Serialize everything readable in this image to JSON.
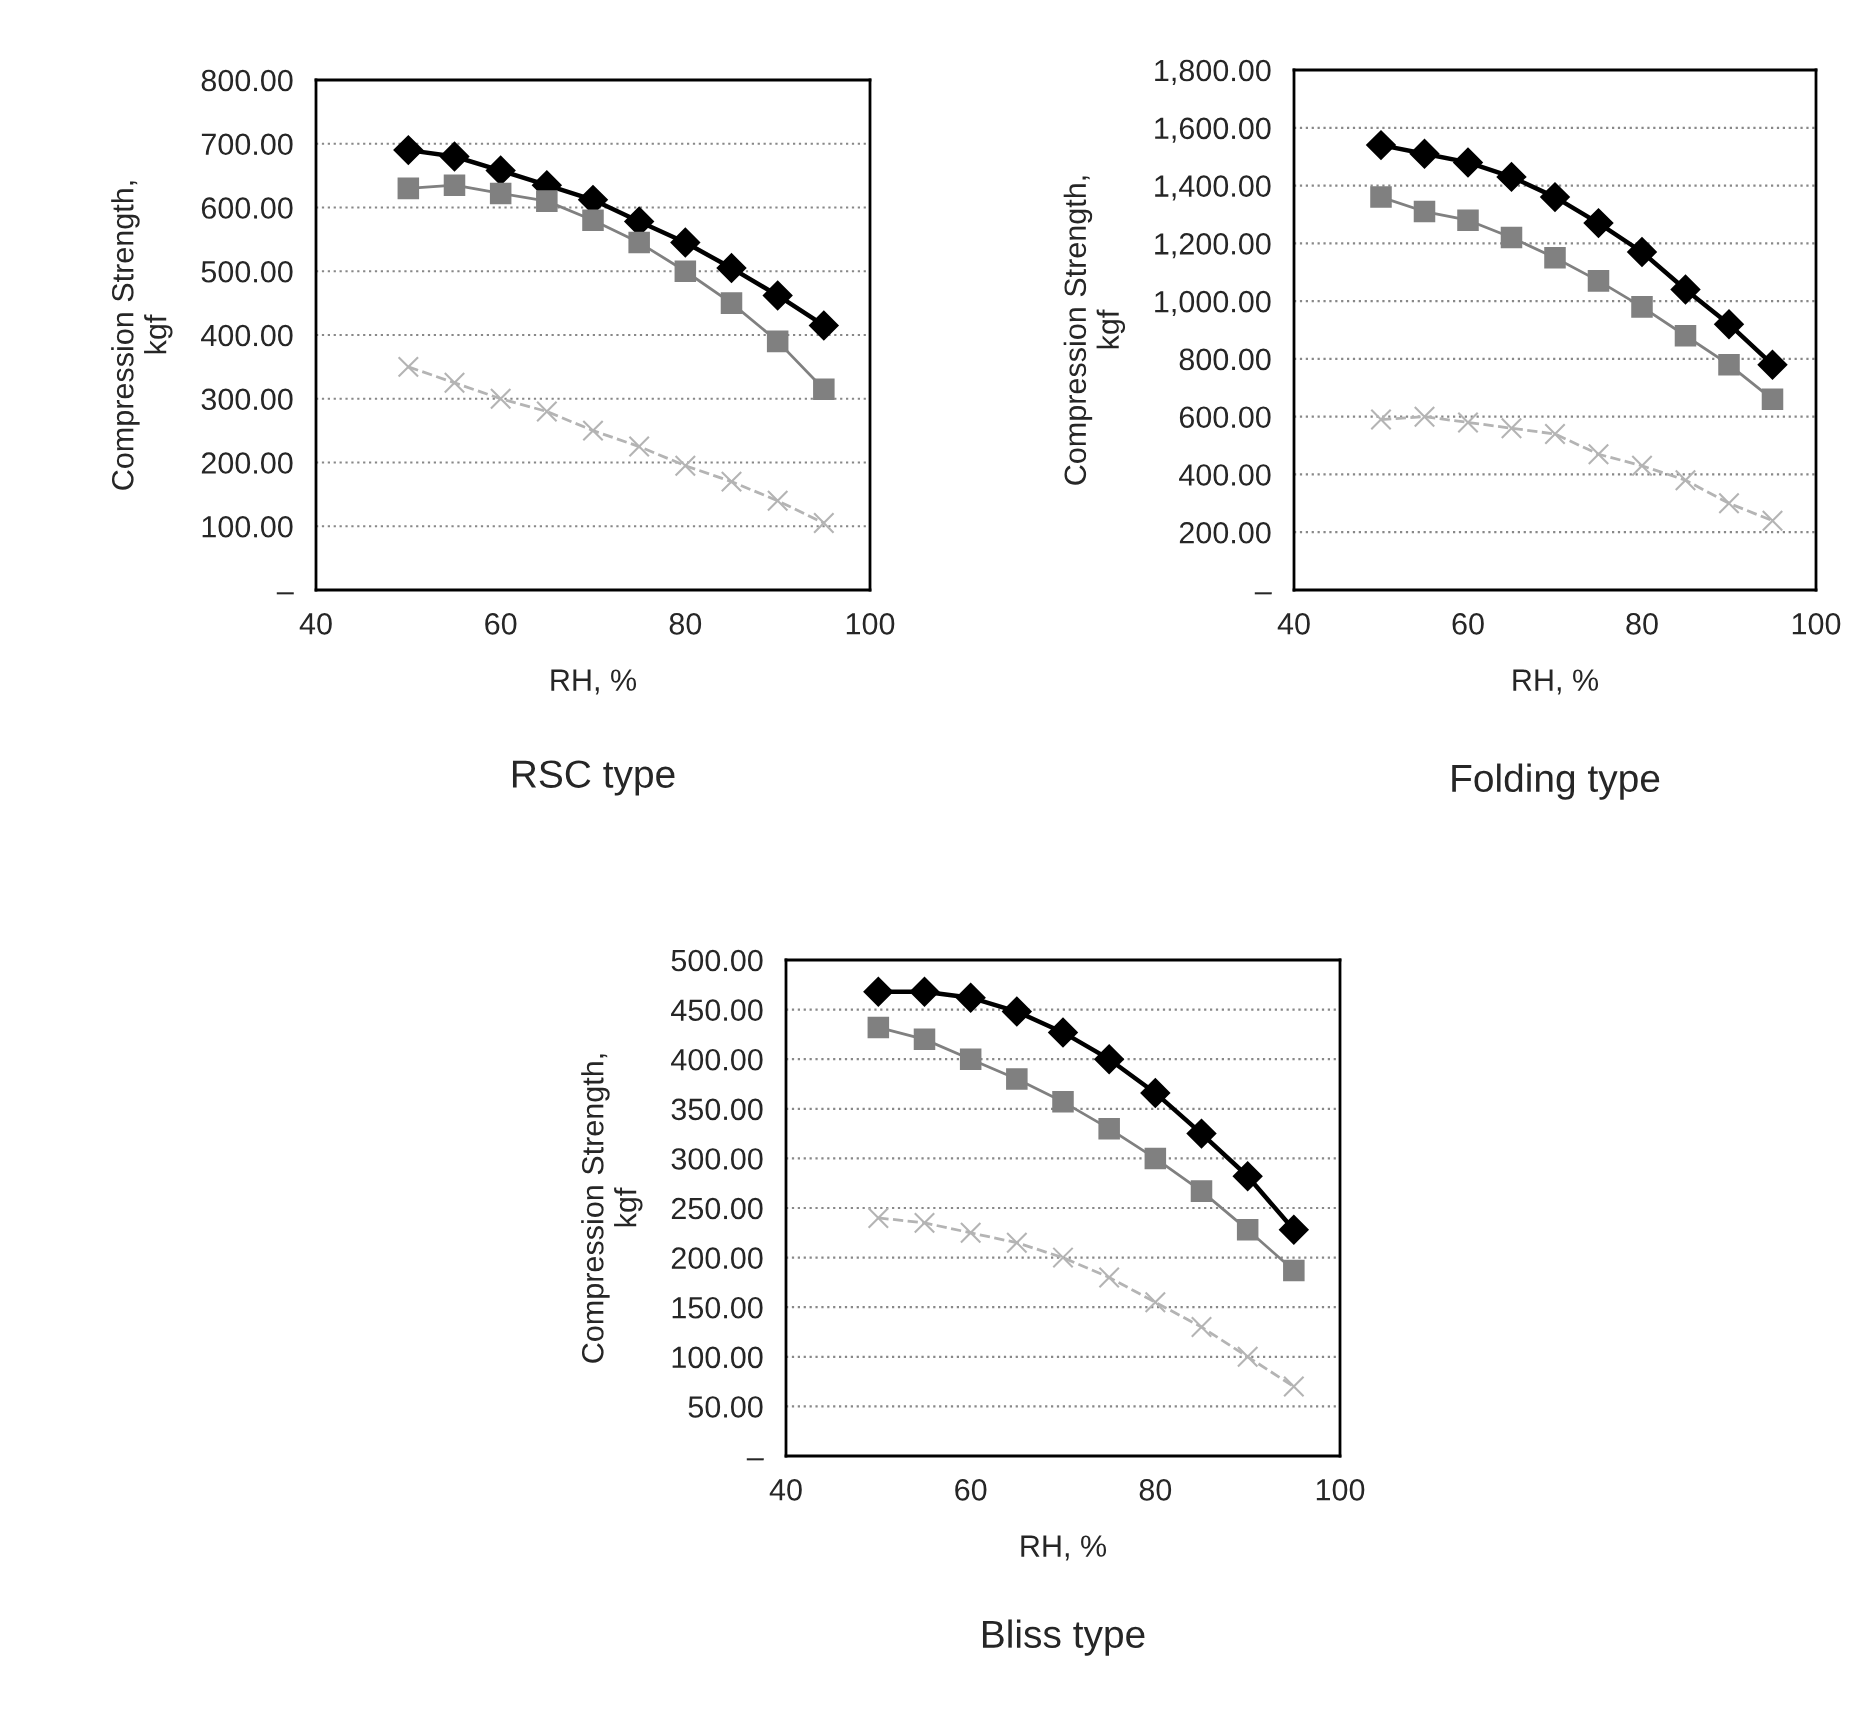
{
  "chart_data": [
    {
      "type": "line",
      "title": "RSC type",
      "xlabel": "RH, %",
      "ylabel": "Compression Strength,\nkgf",
      "x": [
        50,
        55,
        60,
        65,
        70,
        75,
        80,
        85,
        90,
        95
      ],
      "xlim": [
        40,
        100
      ],
      "xticks": [
        40,
        60,
        80,
        100
      ],
      "ylim": [
        0,
        800
      ],
      "yticks": [
        {
          "value": 0,
          "label": "–"
        },
        {
          "value": 100,
          "label": "100.00"
        },
        {
          "value": 200,
          "label": "200.00"
        },
        {
          "value": 300,
          "label": "300.00"
        },
        {
          "value": 400,
          "label": "400.00"
        },
        {
          "value": 500,
          "label": "500.00"
        },
        {
          "value": 600,
          "label": "600.00"
        },
        {
          "value": 700,
          "label": "700.00"
        },
        {
          "value": 800,
          "label": "800.00"
        }
      ],
      "grid": "y",
      "series": [
        {
          "color": "#000000",
          "marker": "diamond",
          "line_style": "solid",
          "values": [
            690,
            680,
            658,
            635,
            612,
            578,
            545,
            505,
            462,
            415
          ]
        },
        {
          "color": "#808080",
          "marker": "square",
          "line_style": "solid",
          "values": [
            630,
            635,
            622,
            610,
            580,
            545,
            500,
            450,
            390,
            315
          ]
        },
        {
          "color": "#b4b4b4",
          "marker": "cross",
          "line_style": "dashed",
          "values": [
            350,
            325,
            300,
            280,
            250,
            225,
            195,
            170,
            140,
            105
          ]
        }
      ]
    },
    {
      "type": "line",
      "title": "Folding type",
      "xlabel": "RH, %",
      "ylabel": "Compression Strength,\nkgf",
      "x": [
        50,
        55,
        60,
        65,
        70,
        75,
        80,
        85,
        90,
        95
      ],
      "xlim": [
        40,
        100
      ],
      "xticks": [
        40,
        60,
        80,
        100
      ],
      "ylim": [
        0,
        1800
      ],
      "yticks": [
        {
          "value": 0,
          "label": "–"
        },
        {
          "value": 200,
          "label": "200.00"
        },
        {
          "value": 400,
          "label": "400.00"
        },
        {
          "value": 600,
          "label": "600.00"
        },
        {
          "value": 800,
          "label": "800.00"
        },
        {
          "value": 1000,
          "label": "1,000.00"
        },
        {
          "value": 1200,
          "label": "1,200.00"
        },
        {
          "value": 1400,
          "label": "1,400.00"
        },
        {
          "value": 1600,
          "label": "1,600.00"
        },
        {
          "value": 1800,
          "label": "1,800.00"
        }
      ],
      "grid": "y",
      "series": [
        {
          "color": "#000000",
          "marker": "diamond",
          "line_style": "solid",
          "values": [
            1540,
            1510,
            1480,
            1430,
            1360,
            1270,
            1170,
            1040,
            920,
            780
          ]
        },
        {
          "color": "#808080",
          "marker": "square",
          "line_style": "solid",
          "values": [
            1360,
            1310,
            1280,
            1220,
            1150,
            1070,
            980,
            880,
            780,
            660
          ]
        },
        {
          "color": "#b4b4b4",
          "marker": "cross",
          "line_style": "dashed",
          "values": [
            590,
            600,
            580,
            560,
            540,
            470,
            430,
            380,
            300,
            240
          ]
        }
      ]
    },
    {
      "type": "line",
      "title": "Bliss type",
      "xlabel": "RH, %",
      "ylabel": "Compression Strength,\nkgf",
      "x": [
        50,
        55,
        60,
        65,
        70,
        75,
        80,
        85,
        90,
        95
      ],
      "xlim": [
        40,
        100
      ],
      "xticks": [
        40,
        60,
        80,
        100
      ],
      "ylim": [
        0,
        500
      ],
      "yticks": [
        {
          "value": 0,
          "label": "–"
        },
        {
          "value": 50,
          "label": "50.00"
        },
        {
          "value": 100,
          "label": "100.00"
        },
        {
          "value": 150,
          "label": "150.00"
        },
        {
          "value": 200,
          "label": "200.00"
        },
        {
          "value": 250,
          "label": "250.00"
        },
        {
          "value": 300,
          "label": "300.00"
        },
        {
          "value": 350,
          "label": "350.00"
        },
        {
          "value": 400,
          "label": "400.00"
        },
        {
          "value": 450,
          "label": "450.00"
        },
        {
          "value": 500,
          "label": "500.00"
        }
      ],
      "grid": "y",
      "series": [
        {
          "color": "#000000",
          "marker": "diamond",
          "line_style": "solid",
          "values": [
            468,
            468,
            462,
            448,
            427,
            400,
            366,
            325,
            282,
            228
          ]
        },
        {
          "color": "#808080",
          "marker": "square",
          "line_style": "solid",
          "values": [
            432,
            420,
            400,
            380,
            357,
            330,
            300,
            267,
            228,
            187
          ]
        },
        {
          "color": "#b4b4b4",
          "marker": "cross",
          "line_style": "dashed",
          "values": [
            240,
            235,
            225,
            215,
            200,
            180,
            155,
            130,
            100,
            70
          ]
        }
      ]
    }
  ]
}
